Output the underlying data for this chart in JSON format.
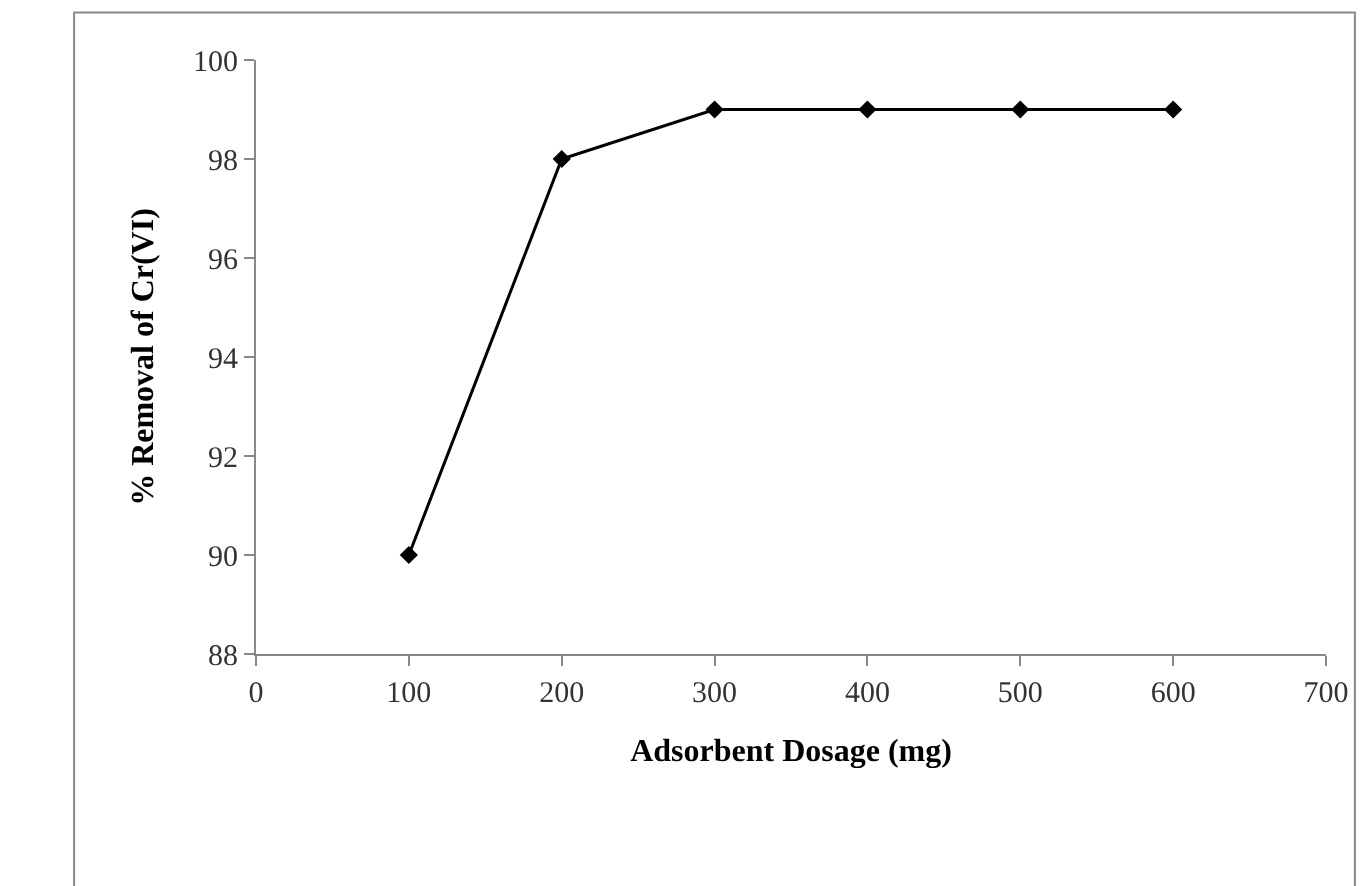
{
  "chart_data": {
    "type": "line",
    "xlabel": "Adsorbent Dosage (mg)",
    "ylabel": "% Removal of Cr(VI)",
    "x": [
      100,
      200,
      300,
      400,
      500,
      600
    ],
    "series": [
      {
        "color": "#000000",
        "values": [
          90,
          98,
          99,
          99,
          99,
          99
        ]
      }
    ],
    "xlim": [
      0,
      700
    ],
    "xticks": [
      0,
      100,
      200,
      300,
      400,
      500,
      600,
      700
    ],
    "ylim": [
      88,
      100
    ],
    "yticks": [
      88,
      90,
      92,
      94,
      96,
      98,
      100
    ],
    "marker": "diamond",
    "line_style": "solid"
  }
}
